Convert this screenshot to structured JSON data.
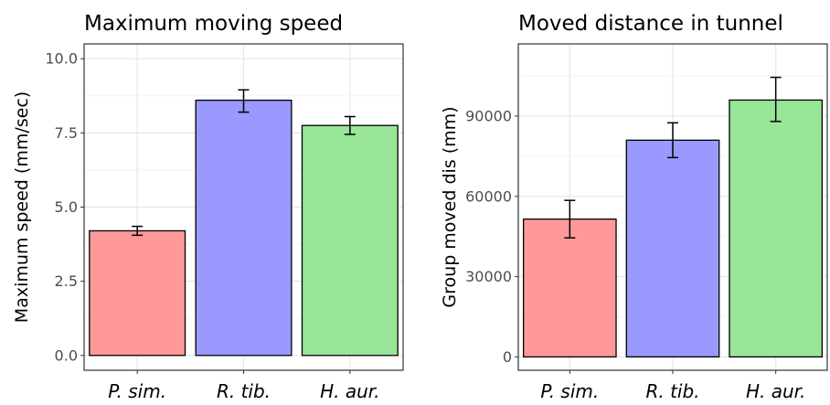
{
  "chart_data": [
    {
      "type": "bar",
      "title": "Maximum moving speed",
      "xlabel": "",
      "ylabel": "Maximum speed (mm/sec)",
      "categories": [
        "P. sim.",
        "R. tib.",
        "H. aur."
      ],
      "values": [
        4.2,
        8.6,
        7.75
      ],
      "error_low": [
        4.05,
        8.2,
        7.45
      ],
      "error_high": [
        4.35,
        8.95,
        8.05
      ],
      "colors": [
        "#ff9999",
        "#9999ff",
        "#99e699"
      ],
      "ylim": [
        -0.5,
        10.5
      ],
      "yticks": [
        0,
        2.5,
        5,
        7.5,
        10
      ],
      "ytick_labels": [
        "0.0",
        "2.5",
        "5.0",
        "7.5",
        "10.0"
      ],
      "grid": true
    },
    {
      "type": "bar",
      "title": "Moved distance in tunnel",
      "xlabel": "",
      "ylabel": "Group moved dis (mm)",
      "categories": [
        "P. sim.",
        "R. tib.",
        "H. aur."
      ],
      "values": [
        51500,
        81000,
        96000
      ],
      "error_low": [
        44500,
        74500,
        88000
      ],
      "error_high": [
        58500,
        87500,
        104500
      ],
      "colors": [
        "#ff9999",
        "#9999ff",
        "#99e699"
      ],
      "ylim": [
        -5000,
        117000
      ],
      "yticks": [
        0,
        30000,
        60000,
        90000
      ],
      "ytick_labels": [
        "0",
        "30000",
        "60000",
        "90000"
      ],
      "grid": true
    }
  ]
}
